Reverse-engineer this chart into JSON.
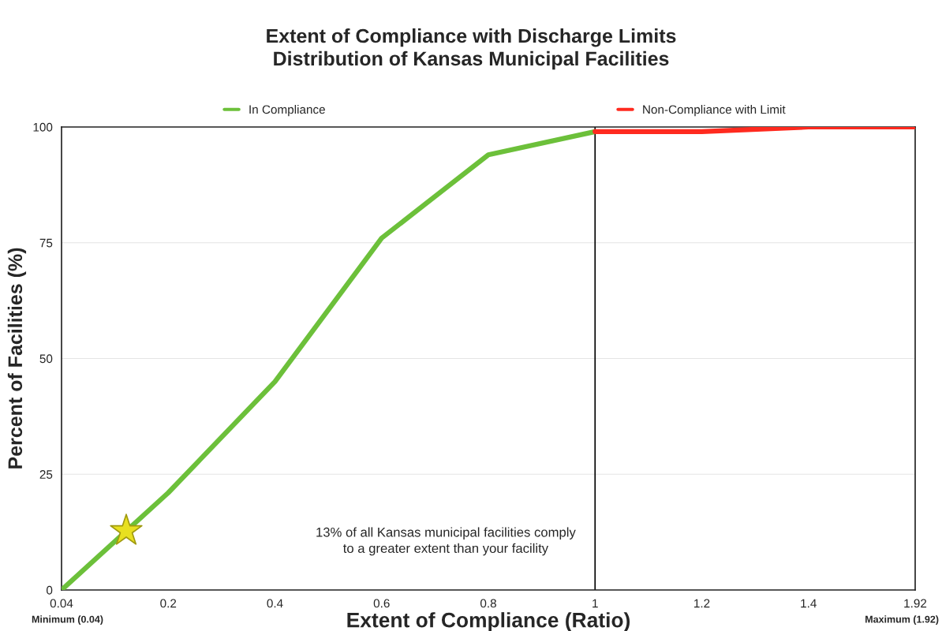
{
  "chart_data": {
    "type": "line",
    "title": "Extent of Compliance with Discharge Limits\nDistribution of Kansas Municipal Facilities",
    "xlabel": "Extent of Compliance (Ratio)",
    "ylabel": "Percent of Facilities (%)",
    "categories": [
      "0.04",
      "0.2",
      "0.4",
      "0.6",
      "0.8",
      "1",
      "1.2",
      "1.4",
      "1.92"
    ],
    "series": [
      {
        "name": "In Compliance",
        "color": "#6cc03a",
        "values": [
          0,
          21,
          45,
          76,
          94,
          99,
          null,
          null,
          null
        ]
      },
      {
        "name": "Non-Compliance with Limit",
        "color": "#ff2a1f",
        "values": [
          null,
          null,
          null,
          null,
          null,
          99,
          99,
          100,
          100
        ]
      }
    ],
    "ylim": [
      0,
      100
    ],
    "yticks": [
      0,
      25,
      50,
      75,
      100
    ],
    "grid": "y",
    "legend": "top",
    "ref_lines": [
      {
        "axis": "x",
        "value": "1",
        "color": "#000000"
      }
    ],
    "annotations": [
      "13% of all Kansas municipal facilities comply\nto a greater extent than your facility",
      "Minimum (0.04)",
      "Maximum (1.92)"
    ]
  }
}
